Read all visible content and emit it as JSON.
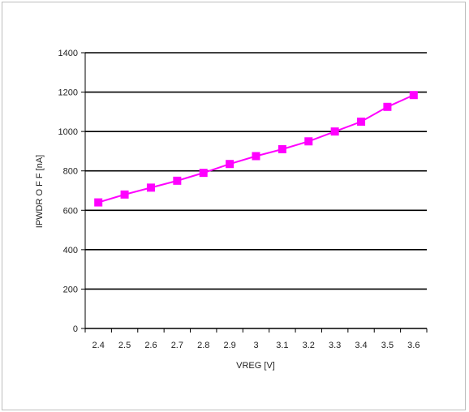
{
  "chart_data": {
    "type": "line",
    "title": "",
    "xlabel": "VREG [V]",
    "ylabel": "IPWDR O F F [nA]",
    "categories": [
      "2.4",
      "2.5",
      "2.6",
      "2.7",
      "2.8",
      "2.9",
      "3",
      "3.1",
      "3.2",
      "3.3",
      "3.4",
      "3.5",
      "3.6"
    ],
    "series": [
      {
        "values": [
          640,
          680,
          715,
          750,
          790,
          835,
          875,
          910,
          950,
          1000,
          1050,
          1125,
          1185
        ],
        "color": "#ff00ff",
        "marker": "square"
      }
    ],
    "ylim": [
      0,
      1400
    ],
    "yticks": [
      "0",
      "200",
      "400",
      "600",
      "800",
      "1000",
      "1200",
      "1400"
    ],
    "grid": "horizontal",
    "legend": "none"
  }
}
